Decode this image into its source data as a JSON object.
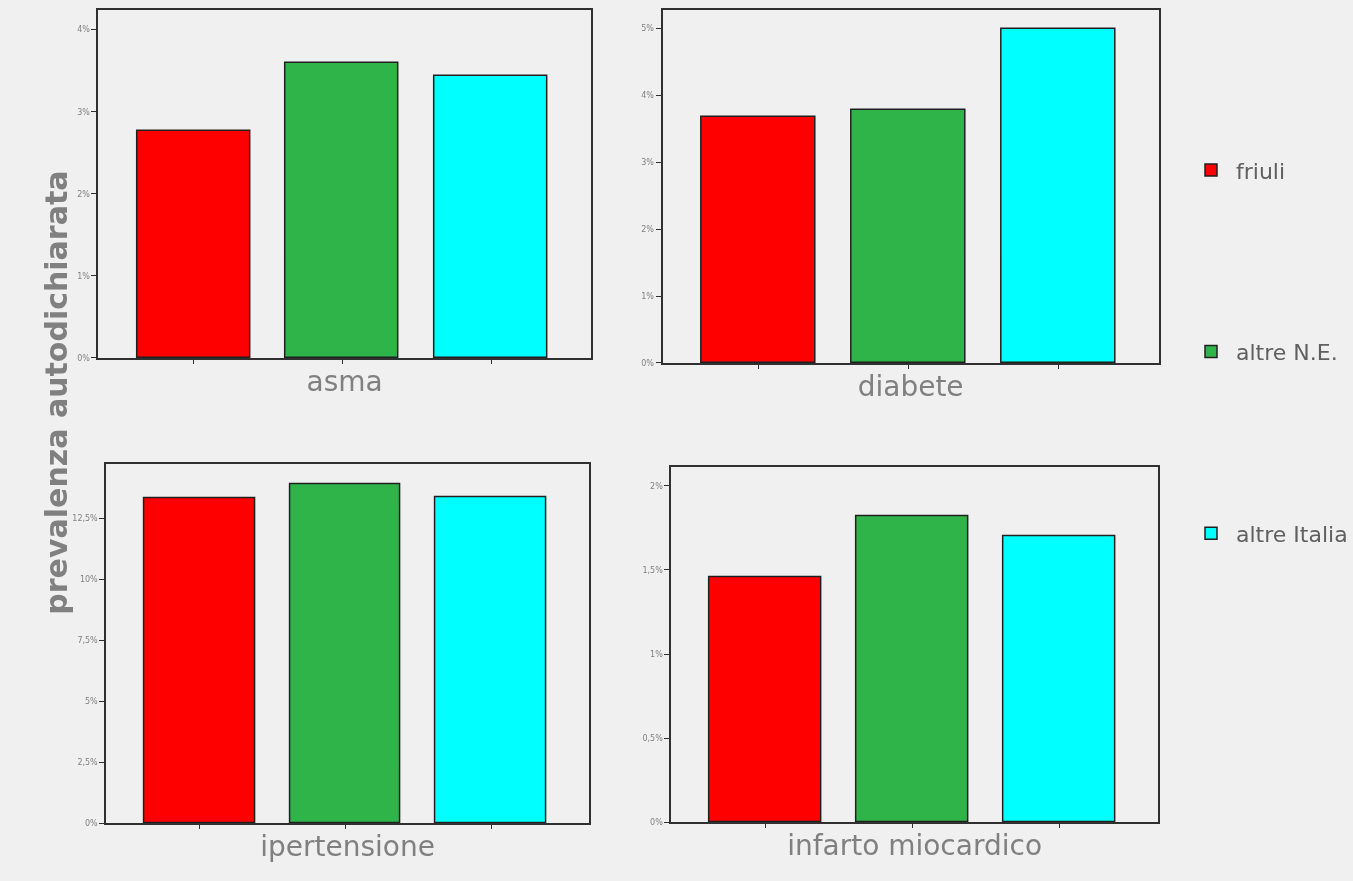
{
  "chart_data": [
    {
      "type": "bar",
      "xlabel": "asma",
      "ylabel": "prevalenza autodichiarata",
      "categories": [
        null
      ],
      "legend": "right",
      "ylim": [
        0,
        4.24
      ],
      "yticks": [
        {
          "value": 0,
          "label": "0%"
        },
        {
          "value": 1,
          "label": "1%"
        },
        {
          "value": 2,
          "label": "2%"
        },
        {
          "value": 3,
          "label": "3%"
        },
        {
          "value": 4,
          "label": "4%"
        }
      ],
      "series": [
        {
          "name": "friuli",
          "color": "#ff0000",
          "values": [
            2.76
          ]
        },
        {
          "name": "altre N.E.",
          "color": "#2fb44a",
          "values": [
            3.6
          ]
        },
        {
          "name": "altre Italia",
          "color": "#00ffff",
          "values": [
            3.43
          ]
        }
      ]
    },
    {
      "type": "bar",
      "xlabel": "diabete",
      "categories": [
        null
      ],
      "ylim": [
        0,
        5.28
      ],
      "yticks": [
        {
          "value": 0,
          "label": "0%"
        },
        {
          "value": 1,
          "label": "1%"
        },
        {
          "value": 2,
          "label": "2%"
        },
        {
          "value": 3,
          "label": "3%"
        },
        {
          "value": 4,
          "label": "4%"
        },
        {
          "value": 5,
          "label": "5%"
        }
      ],
      "series": [
        {
          "color": "#ff0000",
          "values": [
            3.68
          ]
        },
        {
          "color": "#2fb44a",
          "values": [
            3.78
          ]
        },
        {
          "color": "#00ffff",
          "values": [
            5.0
          ]
        }
      ]
    },
    {
      "type": "bar",
      "xlabel": "ipertensione",
      "categories": [
        null
      ],
      "ylim": [
        0,
        14.7
      ],
      "yticks": [
        {
          "value": 0,
          "label": "0%"
        },
        {
          "value": 2.5,
          "label": "2,5%"
        },
        {
          "value": 5,
          "label": "5%"
        },
        {
          "value": 7.5,
          "label": "7,5%"
        },
        {
          "value": 10,
          "label": "10%"
        },
        {
          "value": 12.5,
          "label": "12,5%"
        }
      ],
      "series": [
        {
          "color": "#ff0000",
          "values": [
            13.3
          ]
        },
        {
          "color": "#2fb44a",
          "values": [
            13.9
          ]
        },
        {
          "color": "#00ffff",
          "values": [
            13.35
          ]
        }
      ]
    },
    {
      "type": "bar",
      "xlabel": "infarto miocardico",
      "categories": [
        null
      ],
      "ylim": [
        0,
        2.11
      ],
      "yticks": [
        {
          "value": 0,
          "label": "0%"
        },
        {
          "value": 0.5,
          "label": "0,5%"
        },
        {
          "value": 1,
          "label": "1%"
        },
        {
          "value": 1.5,
          "label": "1,5%"
        },
        {
          "value": 2,
          "label": "2%"
        }
      ],
      "series": [
        {
          "color": "#ff0000",
          "values": [
            1.455
          ]
        },
        {
          "color": "#2fb44a",
          "values": [
            1.82
          ]
        },
        {
          "color": "#00ffff",
          "values": [
            1.7
          ]
        }
      ]
    }
  ]
}
